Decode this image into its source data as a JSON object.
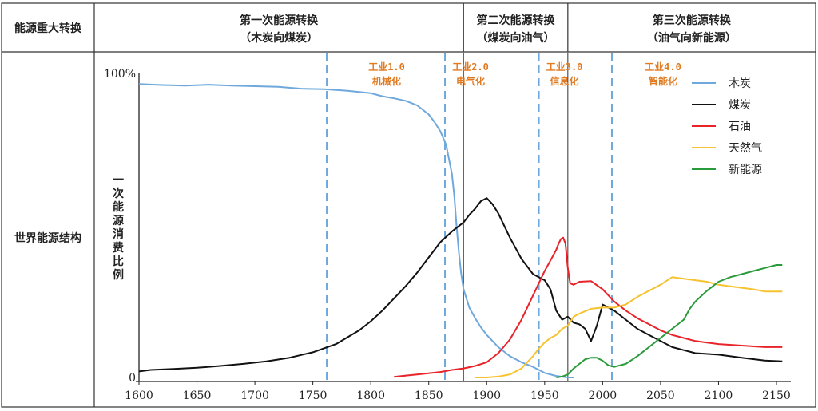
{
  "table": {
    "corner_label": "能源重大转换",
    "row_label": "世界能源结构",
    "transitions": [
      {
        "title": "第一次能源转换",
        "subtitle": "（木炭向煤炭）"
      },
      {
        "title": "第二次能源转换",
        "subtitle": "（煤炭向油气）"
      },
      {
        "title": "第三次能源转换",
        "subtitle": "（油气向新能源）"
      }
    ]
  },
  "chart_data": {
    "type": "line",
    "ylabel": "一次能源消费比例",
    "x_ticks": [
      1600,
      1650,
      1700,
      1750,
      1800,
      1850,
      1900,
      1950,
      2000,
      2050,
      2100,
      2150
    ],
    "y_ticks": [
      {
        "value": 0,
        "label": "0"
      },
      {
        "value": 100,
        "label": "100%"
      }
    ],
    "xlim": [
      1600,
      2155
    ],
    "ylim": [
      0,
      100
    ],
    "transition_boundaries": [
      1880,
      1970
    ],
    "industry_lines": [
      {
        "x": 1762,
        "label1": "工业1.0",
        "label2": "机械化"
      },
      {
        "x": 1864,
        "label1": "工业2.0",
        "label2": "电气化"
      },
      {
        "x": 1945,
        "label1": "工业3.0",
        "label2": "信息化"
      },
      {
        "x": 2008,
        "label1": "工业4.0",
        "label2": "智能化"
      }
    ],
    "series": [
      {
        "name": "木炭",
        "color": "#6fa8dc",
        "x": [
          1600,
          1620,
          1640,
          1660,
          1680,
          1700,
          1720,
          1740,
          1760,
          1780,
          1800,
          1810,
          1820,
          1830,
          1840,
          1850,
          1855,
          1860,
          1865,
          1870,
          1872,
          1874,
          1876,
          1878,
          1880,
          1885,
          1890,
          1895,
          1900,
          1910,
          1920,
          1930,
          1940,
          1950,
          1960,
          1970,
          1975
        ],
        "y": [
          96.5,
          96.2,
          96,
          96.3,
          96,
          95.8,
          95.6,
          95,
          94.8,
          94.3,
          93.5,
          92.5,
          91.8,
          91,
          89.5,
          86.5,
          84,
          81,
          76.5,
          67,
          60,
          50,
          41,
          34,
          29,
          23,
          19.5,
          16.5,
          14,
          10,
          7,
          5,
          3.5,
          1.5,
          0.5,
          0,
          0
        ]
      },
      {
        "name": "煤炭",
        "color": "#111111",
        "x": [
          1600,
          1610,
          1630,
          1650,
          1670,
          1690,
          1710,
          1730,
          1750,
          1770,
          1790,
          1800,
          1810,
          1820,
          1830,
          1840,
          1850,
          1860,
          1870,
          1880,
          1885,
          1890,
          1895,
          1900,
          1905,
          1910,
          1920,
          1930,
          1940,
          1950,
          1955,
          1960,
          1965,
          1970,
          1975,
          1980,
          1985,
          1990,
          1995,
          2000,
          2010,
          2020,
          2030,
          2040,
          2050,
          2060,
          2070,
          2080,
          2100,
          2120,
          2140,
          2155
        ],
        "y": [
          2,
          2.5,
          2.8,
          3.2,
          3.8,
          4.5,
          5.3,
          6.5,
          8.3,
          11,
          15.5,
          18.5,
          22,
          26,
          30,
          34.5,
          39.5,
          44.5,
          48,
          51,
          53.5,
          55.5,
          58,
          59,
          57,
          54,
          46,
          39,
          34,
          32,
          29,
          22,
          19,
          20,
          18,
          17.5,
          16,
          12,
          17,
          24,
          22,
          19,
          16,
          14,
          12,
          10,
          9,
          8,
          7.5,
          6.5,
          5.6,
          5.3
        ]
      },
      {
        "name": "石油",
        "color": "#e8232a",
        "x": [
          1820,
          1840,
          1860,
          1870,
          1880,
          1890,
          1900,
          1910,
          1920,
          1930,
          1940,
          1950,
          1955,
          1960,
          1962,
          1964,
          1966,
          1968,
          1970,
          1972,
          1975,
          1980,
          1990,
          2000,
          2010,
          2020,
          2030,
          2040,
          2050,
          2060,
          2070,
          2080,
          2090,
          2100,
          2120,
          2140,
          2155
        ],
        "y": [
          0.2,
          1,
          1.8,
          2.5,
          3,
          3.8,
          5,
          8,
          12.5,
          19,
          27,
          35,
          38.5,
          42,
          44,
          45.5,
          46,
          44,
          36,
          31,
          30.5,
          31.5,
          31.7,
          29,
          25,
          22,
          19.5,
          17.5,
          15.5,
          14,
          13,
          12,
          11.5,
          11,
          10.5,
          10,
          10
        ]
      },
      {
        "name": "天然气",
        "color": "#f7c230",
        "x": [
          1890,
          1900,
          1910,
          1920,
          1930,
          1940,
          1945,
          1950,
          1955,
          1960,
          1965,
          1970,
          1975,
          1980,
          1985,
          1990,
          2000,
          2010,
          2020,
          2030,
          2040,
          2050,
          2060,
          2070,
          2080,
          2090,
          2100,
          2110,
          2120,
          2130,
          2140,
          2155
        ],
        "y": [
          0,
          0,
          0.3,
          1,
          3,
          7,
          9.5,
          11.5,
          13,
          14,
          16,
          17,
          20,
          21,
          21.8,
          22.6,
          23,
          23,
          24,
          26.5,
          28.5,
          30.5,
          33,
          32.5,
          32,
          31.5,
          30.5,
          30,
          29.5,
          29,
          28.3,
          28.3
        ]
      },
      {
        "name": "新能源",
        "color": "#2a9b3a",
        "x": [
          1960,
          1965,
          1970,
          1975,
          1980,
          1985,
          1990,
          1995,
          2000,
          2005,
          2010,
          2020,
          2030,
          2040,
          2050,
          2060,
          2070,
          2075,
          2080,
          2090,
          2100,
          2110,
          2120,
          2130,
          2140,
          2150,
          2155
        ],
        "y": [
          0,
          0.3,
          1,
          3,
          4.5,
          6,
          6.5,
          6.5,
          5.5,
          4,
          3.5,
          4.5,
          7,
          10,
          13,
          16,
          19,
          22.5,
          25,
          28.5,
          31.5,
          33,
          34,
          35,
          36,
          37,
          37
        ]
      }
    ]
  }
}
